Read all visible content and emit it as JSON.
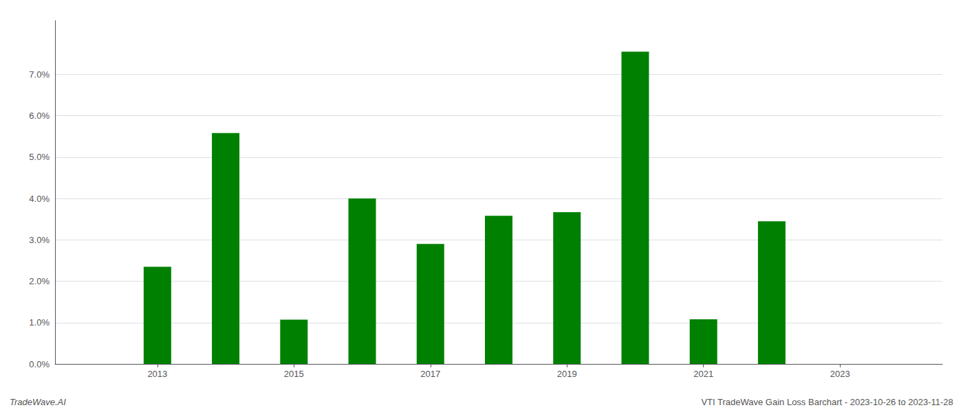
{
  "chart_data": {
    "type": "bar",
    "x": [
      2013,
      2014,
      2015,
      2016,
      2017,
      2018,
      2019,
      2020,
      2021,
      2022
    ],
    "values": [
      0.0235,
      0.0558,
      0.0107,
      0.04,
      0.029,
      0.0358,
      0.0367,
      0.0755,
      0.0108,
      0.0345
    ],
    "color": "#008000",
    "xlim": [
      2011.5,
      2024.5
    ],
    "ylim": [
      0.0,
      0.083
    ],
    "xticks": [
      2013,
      2015,
      2017,
      2019,
      2021,
      2023
    ],
    "yticks": [
      {
        "value": 0.0,
        "label": "0.0%"
      },
      {
        "value": 0.01,
        "label": "1.0%"
      },
      {
        "value": 0.02,
        "label": "2.0%"
      },
      {
        "value": 0.03,
        "label": "3.0%"
      },
      {
        "value": 0.04,
        "label": "4.0%"
      },
      {
        "value": 0.05,
        "label": "5.0%"
      },
      {
        "value": 0.06,
        "label": "6.0%"
      },
      {
        "value": 0.07,
        "label": "7.0%"
      }
    ],
    "grid": true,
    "annotations": [
      "TradeWave.AI",
      "VTI TradeWave Gain Loss Barchart - 2023-10-26 to 2023-11-28"
    ]
  }
}
